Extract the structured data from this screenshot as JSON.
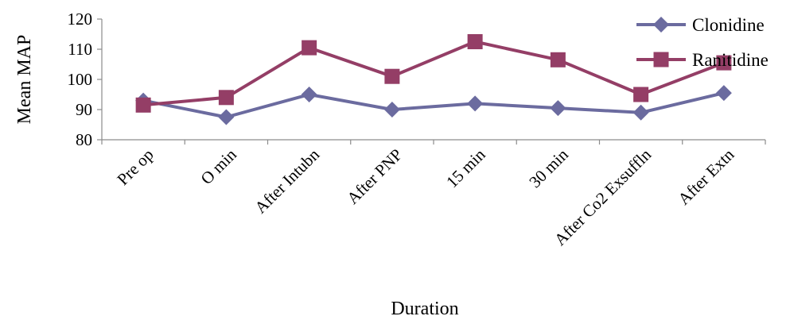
{
  "chart_data": {
    "type": "line",
    "title": "",
    "xlabel": "Duration",
    "ylabel": "Mean MAP",
    "ylim": [
      80,
      120
    ],
    "yticks": [
      80,
      90,
      100,
      110,
      120
    ],
    "grid": false,
    "legend_position": "top-right",
    "categories": [
      "Pre op",
      "O min",
      "After Intubn",
      "After PNP",
      "15 min",
      "30 min",
      "After Co2 Exsuffln",
      "After Extn"
    ],
    "series": [
      {
        "name": "Clonidine",
        "color": "#6b6b9f",
        "marker": "diamond",
        "values": [
          93,
          87.5,
          95,
          90,
          92,
          90.5,
          89,
          95.5
        ]
      },
      {
        "name": "Ranitidine",
        "color": "#943e66",
        "marker": "square",
        "values": [
          91.5,
          94,
          110.5,
          101,
          112.5,
          106.5,
          95,
          105.5
        ]
      }
    ]
  }
}
